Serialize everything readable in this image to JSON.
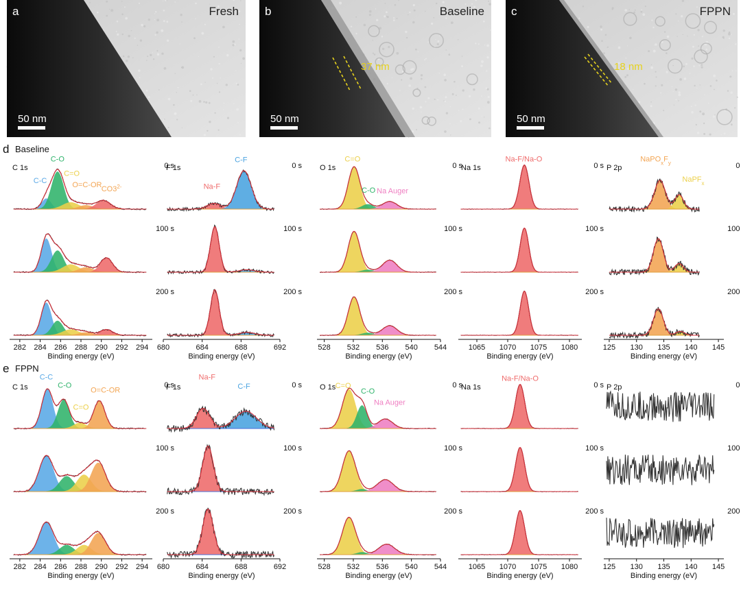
{
  "tem": [
    {
      "letter": "a",
      "label": "Fresh",
      "scale": "50 nm",
      "thickness": ""
    },
    {
      "letter": "b",
      "label": "Baseline",
      "scale": "50 nm",
      "thickness": "37 nm"
    },
    {
      "letter": "c",
      "label": "FPPN",
      "scale": "50 nm",
      "thickness": "18 nm"
    }
  ],
  "colors": {
    "C-C": "#5aa9e6",
    "C-O": "#2fb36b",
    "C=O": "#ecd04a",
    "O=C-OR": "#f3a553",
    "CO3": "#ee6b6b",
    "Na-F": "#ef6b6b",
    "C-F": "#4aa3e0",
    "Na Auger": "#ef7fc2",
    "NaPO": "#f3a553",
    "NaPF": "#ecd04a",
    "raw": "#333333",
    "envelope": "#d7303b",
    "baseline": "#4a6fd8"
  },
  "rows": [
    {
      "letter": "d",
      "title": "Baseline",
      "times": [
        "0 s",
        "100 s",
        "200 s"
      ],
      "panels": [
        {
          "name": "C 1s",
          "xmin": 281,
          "xmax": 295,
          "ticks": [
            282,
            284,
            286,
            288,
            290,
            292,
            294
          ],
          "xlabel": "Binding energy (eV)",
          "labels": [
            {
              "text": "C-O",
              "c": "C-O",
              "x": 285.7,
              "y": 0.99
            },
            {
              "text": "C=O",
              "c": "C=O",
              "x": 287.1,
              "y": 0.69
            },
            {
              "text": "C-C",
              "c": "C-C",
              "x": 284.0,
              "y": 0.54
            },
            {
              "text": "O=C-OR",
              "c": "O=C-OR",
              "x": 288.6,
              "y": 0.46
            },
            {
              "text": "CO3",
              "sup": "2-",
              "c": "O=C-OR",
              "x": 291.0,
              "y": 0.37
            }
          ],
          "spectra": [
            [
              {
                "c": "C-C",
                "pos": 284.6,
                "h": 0.22,
                "w": 0.45
              },
              {
                "c": "C-O",
                "pos": 285.7,
                "h": 0.78,
                "w": 0.6
              },
              {
                "c": "C=O",
                "pos": 287.0,
                "h": 0.14,
                "w": 0.8
              },
              {
                "c": "O=C-OR",
                "pos": 288.5,
                "h": 0.08,
                "w": 0.7
              },
              {
                "c": "CO3",
                "pos": 290.2,
                "h": 0.18,
                "w": 0.7
              }
            ],
            [
              {
                "c": "C-C",
                "pos": 284.6,
                "h": 0.7,
                "w": 0.5
              },
              {
                "c": "C-O",
                "pos": 285.7,
                "h": 0.45,
                "w": 0.6
              },
              {
                "c": "C=O",
                "pos": 287.0,
                "h": 0.16,
                "w": 0.8
              },
              {
                "c": "O=C-OR",
                "pos": 288.5,
                "h": 0.1,
                "w": 0.7
              },
              {
                "c": "CO3",
                "pos": 290.5,
                "h": 0.3,
                "w": 0.6
              }
            ],
            [
              {
                "c": "C-C",
                "pos": 284.6,
                "h": 0.68,
                "w": 0.5
              },
              {
                "c": "C-O",
                "pos": 285.7,
                "h": 0.3,
                "w": 0.55
              },
              {
                "c": "C=O",
                "pos": 287.0,
                "h": 0.12,
                "w": 0.8
              },
              {
                "c": "O=C-OR",
                "pos": 288.5,
                "h": 0.06,
                "w": 0.7
              },
              {
                "c": "CO3",
                "pos": 290.5,
                "h": 0.12,
                "w": 0.6
              }
            ]
          ],
          "noise": 0.012
        },
        {
          "name": "F 1s",
          "xmin": 680,
          "xmax": 692,
          "ticks": [
            680,
            684,
            688,
            692
          ],
          "xlabel": "Binding energy (eV)",
          "labels": [
            {
              "text": "Na-F",
              "c": "Na-F",
              "x": 685.0,
              "y": 0.42
            },
            {
              "text": "C-F",
              "c": "C-F",
              "x": 688.0,
              "y": 0.98
            }
          ],
          "spectra": [
            [
              {
                "c": "Na-F",
                "pos": 685.2,
                "h": 0.12,
                "w": 0.7
              },
              {
                "c": "C-F",
                "pos": 688.3,
                "h": 0.8,
                "w": 0.75
              }
            ],
            [
              {
                "c": "Na-F",
                "pos": 685.3,
                "h": 0.95,
                "w": 0.45
              },
              {
                "c": "C-F",
                "pos": 688.6,
                "h": 0.05,
                "w": 0.8
              }
            ],
            [
              {
                "c": "Na-F",
                "pos": 685.3,
                "h": 0.95,
                "w": 0.45
              },
              {
                "c": "C-F",
                "pos": 688.6,
                "h": 0.06,
                "w": 0.8
              }
            ]
          ],
          "noise": 0.03
        },
        {
          "name": "O 1s",
          "xmin": 527,
          "xmax": 544,
          "ticks": [
            528,
            532,
            536,
            540,
            544
          ],
          "xlabel": "Binding energy (eV)",
          "labels": [
            {
              "text": "C=O",
              "c": "C=O",
              "x": 531.9,
              "y": 0.99
            },
            {
              "text": "C-O",
              "c": "C-O",
              "x": 534.1,
              "y": 0.34
            },
            {
              "text": "Na Auger",
              "c": "Na Auger",
              "x": 537.4,
              "y": 0.33
            }
          ],
          "spectra": [
            [
              {
                "c": "C=O",
                "pos": 532.1,
                "h": 0.88,
                "w": 0.8
              },
              {
                "c": "C-O",
                "pos": 534.0,
                "h": 0.1,
                "w": 0.8
              },
              {
                "c": "Na Auger",
                "pos": 537.0,
                "h": 0.16,
                "w": 1.0
              }
            ],
            [
              {
                "c": "C=O",
                "pos": 532.1,
                "h": 0.85,
                "w": 0.8
              },
              {
                "c": "C-O",
                "pos": 534.0,
                "h": 0.05,
                "w": 0.8
              },
              {
                "c": "Na Auger",
                "pos": 537.0,
                "h": 0.25,
                "w": 1.0
              }
            ],
            [
              {
                "c": "C=O",
                "pos": 532.1,
                "h": 0.8,
                "w": 0.8
              },
              {
                "c": "C-O",
                "pos": 534.0,
                "h": 0.05,
                "w": 0.8
              },
              {
                "c": "Na Auger",
                "pos": 537.0,
                "h": 0.2,
                "w": 1.0
              }
            ]
          ],
          "noise": 0.006
        },
        {
          "name": "Na 1s",
          "xmin": 1062,
          "xmax": 1082,
          "ticks": [
            1065,
            1070,
            1075,
            1080
          ],
          "xlabel": "Binding energy (eV)",
          "labels": [
            {
              "text": "Na-F/Na-O",
              "c": "Na-F",
              "x": 1072.6,
              "y": 0.99
            }
          ],
          "spectra": [
            [
              {
                "c": "Na-F",
                "pos": 1072.7,
                "h": 0.92,
                "w": 0.75
              }
            ],
            [
              {
                "c": "Na-F",
                "pos": 1072.7,
                "h": 0.92,
                "w": 0.7
              }
            ],
            [
              {
                "c": "Na-F",
                "pos": 1072.7,
                "h": 0.92,
                "w": 0.7
              }
            ]
          ],
          "noise": 0.004
        },
        {
          "name": "P 2p",
          "xmin": 124,
          "xmax": 146,
          "ticks": [
            125,
            130,
            135,
            140,
            145
          ],
          "xlabel": "Binding energy (eV)",
          "labels": [
            {
              "text": "NaPO",
              "sub": "x",
              "text2": "F",
              "sub2": "y",
              "c": "NaPO",
              "x": 133.5,
              "y": 0.99
            },
            {
              "text": "NaPF",
              "sub": "x",
              "c": "NaPF",
              "x": 140.4,
              "y": 0.57
            }
          ],
          "spectra": [
            [
              {
                "c": "NaPO",
                "pos": 134.3,
                "h": 0.6,
                "w": 1.0
              },
              {
                "c": "NaPF",
                "pos": 137.8,
                "h": 0.3,
                "w": 0.8
              }
            ],
            [
              {
                "c": "NaPO",
                "pos": 134.0,
                "h": 0.7,
                "w": 0.9
              },
              {
                "c": "NaPF",
                "pos": 137.8,
                "h": 0.18,
                "w": 0.8
              }
            ],
            [
              {
                "c": "NaPO",
                "pos": 134.0,
                "h": 0.55,
                "w": 0.9
              },
              {
                "c": "NaPF",
                "pos": 138.0,
                "h": 0.08,
                "w": 0.8
              }
            ]
          ],
          "noise": 0.06,
          "xstart": 125,
          "xend": 141.5
        }
      ]
    },
    {
      "letter": "e",
      "title": "FPPN",
      "times": [
        "0 s",
        "100 s",
        "200 s"
      ],
      "panels": [
        {
          "name": "C 1s",
          "xmin": 281,
          "xmax": 295,
          "ticks": [
            282,
            284,
            286,
            288,
            290,
            292,
            294
          ],
          "xlabel": "Binding energy (eV)",
          "labels": [
            {
              "text": "C-C",
              "c": "C-C",
              "x": 284.6,
              "y": 1.02
            },
            {
              "text": "C-O",
              "c": "C-O",
              "x": 286.4,
              "y": 0.85
            },
            {
              "text": "C=O",
              "c": "C=O",
              "x": 288.0,
              "y": 0.39
            },
            {
              "text": "O=C-OR",
              "c": "O=C-OR",
              "x": 290.4,
              "y": 0.75
            }
          ],
          "spectra": [
            [
              {
                "c": "C-C",
                "pos": 284.7,
                "h": 0.82,
                "w": 0.55
              },
              {
                "c": "C-O",
                "pos": 286.3,
                "h": 0.6,
                "w": 0.55
              },
              {
                "c": "C=O",
                "pos": 287.9,
                "h": 0.12,
                "w": 0.6
              },
              {
                "c": "O=C-OR",
                "pos": 289.8,
                "h": 0.58,
                "w": 0.55
              }
            ],
            [
              {
                "c": "C-C",
                "pos": 284.6,
                "h": 0.75,
                "w": 0.7
              },
              {
                "c": "C-O",
                "pos": 286.6,
                "h": 0.32,
                "w": 0.7
              },
              {
                "c": "C=O",
                "pos": 288.3,
                "h": 0.35,
                "w": 0.7
              },
              {
                "c": "O=C-OR",
                "pos": 289.7,
                "h": 0.6,
                "w": 0.7
              }
            ],
            [
              {
                "c": "C-C",
                "pos": 284.6,
                "h": 0.68,
                "w": 0.7
              },
              {
                "c": "C-O",
                "pos": 286.6,
                "h": 0.2,
                "w": 0.7
              },
              {
                "c": "C=O",
                "pos": 288.3,
                "h": 0.2,
                "w": 0.7
              },
              {
                "c": "O=C-OR",
                "pos": 289.7,
                "h": 0.45,
                "w": 0.7
              }
            ]
          ],
          "noise": 0.012
        },
        {
          "name": "F 1s",
          "xmin": 680,
          "xmax": 692,
          "ticks": [
            680,
            684,
            688,
            692
          ],
          "xlabel": "Binding energy (eV)",
          "labels": [
            {
              "text": "Na-F",
              "c": "Na-F",
              "x": 684.5,
              "y": 1.02
            },
            {
              "text": "C-F",
              "c": "C-F",
              "x": 688.3,
              "y": 0.83
            }
          ],
          "spectra": [
            [
              {
                "c": "Na-F",
                "pos": 684.1,
                "h": 0.42,
                "w": 0.7
              },
              {
                "c": "C-F",
                "pos": 688.5,
                "h": 0.36,
                "w": 1.1
              }
            ],
            [
              {
                "c": "Na-F",
                "pos": 684.6,
                "h": 0.95,
                "w": 0.55
              }
            ],
            [
              {
                "c": "Na-F",
                "pos": 684.6,
                "h": 0.95,
                "w": 0.55
              }
            ]
          ],
          "noise": 0.07,
          "baselineBlue": true
        },
        {
          "name": "O 1s",
          "xmin": 527,
          "xmax": 544,
          "ticks": [
            528,
            532,
            536,
            540,
            544
          ],
          "xlabel": "Binding energy (eV)",
          "labels": [
            {
              "text": "C=O",
              "c": "C=O",
              "x": 530.6,
              "y": 0.84
            },
            {
              "text": "C-O",
              "c": "C-O",
              "x": 534.0,
              "y": 0.73
            },
            {
              "text": "Na Auger",
              "c": "Na Auger",
              "x": 537.0,
              "y": 0.49
            }
          ],
          "spectra": [
            [
              {
                "c": "C=O",
                "pos": 531.4,
                "h": 0.82,
                "w": 0.9
              },
              {
                "c": "C-O",
                "pos": 533.2,
                "h": 0.48,
                "w": 0.7
              },
              {
                "c": "Na Auger",
                "pos": 536.4,
                "h": 0.2,
                "w": 1.0
              }
            ],
            [
              {
                "c": "C=O",
                "pos": 531.4,
                "h": 0.85,
                "w": 0.9
              },
              {
                "c": "C-O",
                "pos": 533.2,
                "h": 0.05,
                "w": 0.7
              },
              {
                "c": "Na Auger",
                "pos": 536.4,
                "h": 0.25,
                "w": 1.1
              }
            ],
            [
              {
                "c": "C=O",
                "pos": 531.4,
                "h": 0.78,
                "w": 0.9
              },
              {
                "c": "C-O",
                "pos": 533.2,
                "h": 0.05,
                "w": 0.7
              },
              {
                "c": "Na Auger",
                "pos": 536.6,
                "h": 0.22,
                "w": 1.1
              }
            ]
          ],
          "noise": 0.006
        },
        {
          "name": "Na 1s",
          "xmin": 1062,
          "xmax": 1082,
          "ticks": [
            1065,
            1070,
            1075,
            1080
          ],
          "xlabel": "Binding energy (eV)",
          "labels": [
            {
              "text": "Na-F/Na-O",
              "c": "Na-F",
              "x": 1072.0,
              "y": 0.99
            }
          ],
          "spectra": [
            [
              {
                "c": "Na-F",
                "pos": 1072.0,
                "h": 0.92,
                "w": 0.75
              }
            ],
            [
              {
                "c": "Na-F",
                "pos": 1072.0,
                "h": 0.92,
                "w": 0.75
              }
            ],
            [
              {
                "c": "Na-F",
                "pos": 1072.0,
                "h": 0.92,
                "w": 0.75
              }
            ]
          ],
          "noise": 0.004
        },
        {
          "name": "P 2p",
          "xmin": 124,
          "xmax": 146,
          "ticks": [
            125,
            130,
            135,
            140,
            145
          ],
          "xlabel": "Binding energy (eV)",
          "labels": [],
          "spectra": [
            [],
            [],
            []
          ],
          "noise": 0.0,
          "noiseOnly": true,
          "xstart": 124.5,
          "xend": 144.2
        }
      ]
    }
  ]
}
